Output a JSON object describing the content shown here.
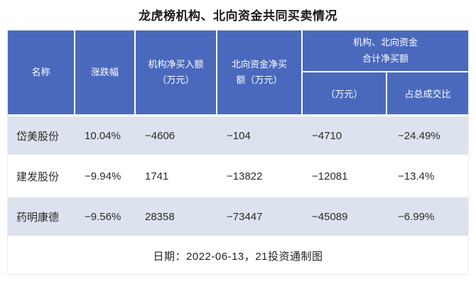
{
  "title": "龙虎榜机构、北向资金共同买卖情况",
  "colors": {
    "header_bg": "#4a69bd",
    "alt_row_bg": "#dde3ee"
  },
  "table": {
    "headers": {
      "name": "名称",
      "change": "涨跌幅",
      "inst": "机构净买入额\n（万元）",
      "north": "北向资金净买\n额（万元）",
      "combined_group": "机构、北向资金\n合计净买额",
      "combined_amount": "（万元）",
      "combined_ratio": "占总成交比"
    },
    "rows": [
      {
        "name": "岱美股份",
        "change": "10.04%",
        "inst": "−4606",
        "north": "−104",
        "combined": "−4710",
        "ratio": "−24.49%"
      },
      {
        "name": "建发股份",
        "change": "−9.94%",
        "inst": "1741",
        "north": "−13822",
        "combined": "−12081",
        "ratio": "−13.4%"
      },
      {
        "name": "药明康德",
        "change": "−9.56%",
        "inst": "28358",
        "north": "−73447",
        "combined": "−45089",
        "ratio": "−6.99%"
      }
    ],
    "footer": "日期：2022-06-13，21投资通制图"
  },
  "chart_data": {
    "type": "table",
    "title": "龙虎榜机构、北向资金共同买卖情况",
    "columns": [
      "名称",
      "涨跌幅",
      "机构净买入额（万元）",
      "北向资金净买额（万元）",
      "机构、北向资金合计净买额（万元）",
      "机构、北向资金合计净买额占总成交比"
    ],
    "rows": [
      [
        "岱美股份",
        "10.04%",
        -4606,
        -104,
        -4710,
        "-24.49%"
      ],
      [
        "建发股份",
        "-9.94%",
        1741,
        -13822,
        -12081,
        "-13.4%"
      ],
      [
        "药明康德",
        "-9.56%",
        28358,
        -73447,
        -45089,
        "-6.99%"
      ]
    ],
    "note": "日期：2022-06-13，21投资通制图"
  }
}
